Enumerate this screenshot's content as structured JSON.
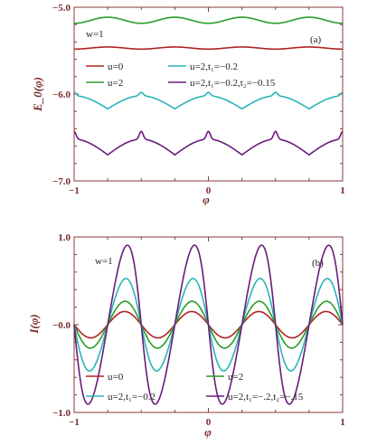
{
  "chart_data": [
    {
      "type": "line",
      "panel_label": "(a)",
      "annotation": "w=1",
      "ylabel": "E_0(φ)",
      "xlabel": "φ",
      "xlim": [
        -1,
        1
      ],
      "ylim": [
        -7.0,
        -5.0
      ],
      "xticks": [
        -1,
        0,
        1
      ],
      "yticks": [
        -7.0,
        -6.0,
        -5.0
      ],
      "ytick_labels": [
        "−7.0",
        "−6.0",
        "−5.0"
      ],
      "xtick_labels": [
        "−1",
        "0",
        "1"
      ],
      "legend_position": "inside, middle",
      "series": [
        {
          "name": "u=0",
          "color": "#b22222",
          "kind": "flat",
          "base": -5.47,
          "amp": -0.012,
          "period": 0.5
        },
        {
          "name": "u=2",
          "color": "#2a9d2a",
          "kind": "flat",
          "base": -5.15,
          "amp": -0.035,
          "period": 0.5
        },
        {
          "name": "u=2,t₁=−0.2",
          "color": "#2bb5b5",
          "kind": "scallop",
          "base": -6.02,
          "amp": 0.15,
          "period": 0.5,
          "dip": 0.04
        },
        {
          "name": "u=2,t₁=−0.2,t₂=−0.15",
          "color": "#6a1b7a",
          "kind": "scallop",
          "base": -6.52,
          "amp": 0.18,
          "period": 0.5,
          "dip": 0.09
        }
      ]
    },
    {
      "type": "line",
      "panel_label": "(b)",
      "annotation": "w=1",
      "ylabel": "I(φ)",
      "xlabel": "φ",
      "xlim": [
        -1,
        1
      ],
      "ylim": [
        -1.0,
        1.0
      ],
      "xticks": [
        -1,
        0,
        1
      ],
      "yticks": [
        -1.0,
        0.0,
        1.0
      ],
      "ytick_labels": [
        "−1.0",
        "−0.0",
        "1.0"
      ],
      "xtick_labels": [
        "−1",
        "0",
        "1"
      ],
      "legend_position": "bottom",
      "series": [
        {
          "name": "u=0",
          "color": "#b22222",
          "amp": 0.16,
          "sharp": 0.2
        },
        {
          "name": "u=2",
          "color": "#2a9d2a",
          "amp": 0.3,
          "sharp": 0.45
        },
        {
          "name": "u=2,t₁=−0.2",
          "color": "#2bb5b5",
          "amp": 0.6,
          "sharp": 0.65
        },
        {
          "name": "u=2,t₁=−.2,t₂=−.15",
          "color": "#6a1b7a",
          "amp": 1.0,
          "sharp": 0.82
        }
      ]
    }
  ]
}
